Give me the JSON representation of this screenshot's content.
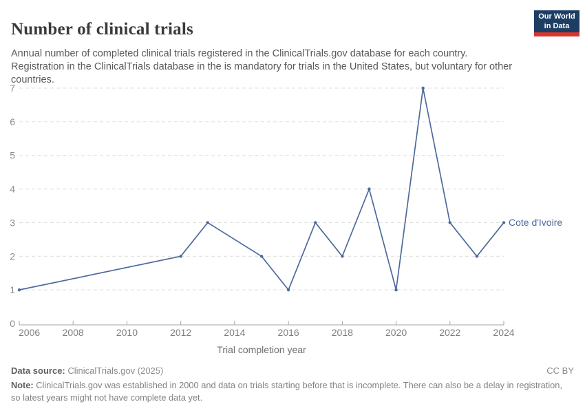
{
  "header": {
    "title": "Number of clinical trials",
    "subtitle": "Annual number of completed clinical trials registered in the ClinicalTrials.gov database for each country. Registration in the ClinicalTrials database in the is mandatory for trials in the United States, but voluntary for other countries.",
    "logo": {
      "line1": "Our World",
      "line2": "in Data",
      "bg_color": "#1d3d63",
      "accent_color": "#dc352c"
    }
  },
  "chart_data": {
    "type": "line",
    "title": "Number of clinical trials",
    "xlabel": "Trial completion year",
    "ylabel": "",
    "xlim": [
      2006,
      2024
    ],
    "ylim": [
      0,
      7
    ],
    "xticks": [
      2006,
      2008,
      2010,
      2012,
      2014,
      2016,
      2018,
      2020,
      2022,
      2024
    ],
    "yticks": [
      0,
      1,
      2,
      3,
      4,
      5,
      6,
      7
    ],
    "grid": "horizontal-dashed",
    "legend_position": "line-end-label",
    "series": [
      {
        "name": "Cote d'Ivoire",
        "color": "#4c6a9c",
        "x": [
          2006,
          2012,
          2013,
          2015,
          2016,
          2017,
          2018,
          2019,
          2020,
          2021,
          2022,
          2023,
          2024
        ],
        "values": [
          1,
          2,
          3,
          2,
          1,
          3,
          2,
          4,
          1,
          7,
          3,
          2,
          3
        ]
      }
    ],
    "colors": {
      "line": "#4c6a9c",
      "grid": "#dcdcdc",
      "axis": "#a5a5a5",
      "x_tick_label": "#7d7d7d",
      "y_tick_label": "#8c8c8c",
      "axis_title": "#6e6e6e"
    }
  },
  "footer": {
    "datasource_label": "Data source:",
    "datasource_value": "ClinicalTrials.gov (2025)",
    "license": "CC BY",
    "note_label": "Note:",
    "note_text": "ClinicalTrials.gov was established in 2000 and data on trials starting before that is incomplete. There can also be a delay in registration, so latest years might not have complete data yet."
  }
}
